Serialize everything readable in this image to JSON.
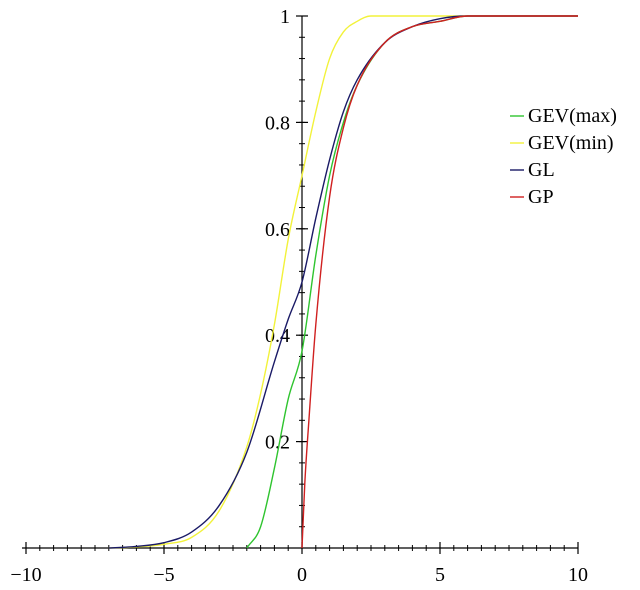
{
  "chart_data": {
    "type": "line",
    "title": "",
    "xlabel": "",
    "ylabel": "",
    "xlim": [
      -10,
      10
    ],
    "ylim": [
      0,
      1
    ],
    "grid": false,
    "legend_position": "right",
    "x_ticks": [
      -10,
      -5,
      0,
      5,
      10
    ],
    "x_tick_labels": [
      "−10",
      "−5",
      "0",
      "5",
      "10"
    ],
    "y_ticks": [
      0.2,
      0.4,
      0.6,
      0.8,
      1
    ],
    "y_tick_labels": [
      "0.2",
      "0.4",
      "0.6",
      "0.8",
      "1"
    ],
    "series": [
      {
        "name": "GEV(max)",
        "color": "#2fc42f",
        "x": [
          -2,
          -1.5,
          -1,
          -0.5,
          0,
          0.5,
          1,
          1.5,
          2,
          3,
          4,
          5,
          6,
          8,
          10
        ],
        "y": [
          0.0,
          0.04,
          0.15,
          0.28,
          0.37,
          0.55,
          0.7,
          0.8,
          0.87,
          0.95,
          0.98,
          0.99,
          1.0,
          1.0,
          1.0
        ]
      },
      {
        "name": "GEV(min)",
        "color": "#f2f23a",
        "x": [
          -7,
          -6,
          -5,
          -4,
          -3,
          -2,
          -1.5,
          -1,
          -0.5,
          0,
          0.5,
          1,
          1.5,
          2,
          2.5,
          3,
          5,
          10
        ],
        "y": [
          0.0,
          0.002,
          0.007,
          0.02,
          0.07,
          0.19,
          0.29,
          0.42,
          0.58,
          0.7,
          0.82,
          0.92,
          0.97,
          0.99,
          1.0,
          1.0,
          1.0,
          1.0
        ]
      },
      {
        "name": "GL",
        "color": "#1a1a66",
        "x": [
          -7,
          -6,
          -5,
          -4,
          -3,
          -2,
          -1,
          -0.5,
          0,
          0.5,
          1,
          1.5,
          2,
          3,
          4,
          5,
          6,
          8,
          10
        ],
        "y": [
          0.0,
          0.003,
          0.01,
          0.03,
          0.08,
          0.18,
          0.35,
          0.43,
          0.5,
          0.62,
          0.73,
          0.82,
          0.88,
          0.95,
          0.98,
          0.995,
          1.0,
          1.0,
          1.0
        ]
      },
      {
        "name": "GP",
        "color": "#d02020",
        "x": [
          0,
          0.1,
          0.25,
          0.5,
          1,
          1.5,
          2,
          3,
          4,
          5,
          6,
          8,
          10
        ],
        "y": [
          0.0,
          0.12,
          0.24,
          0.42,
          0.66,
          0.79,
          0.87,
          0.95,
          0.98,
          0.99,
          1.0,
          1.0,
          1.0
        ]
      }
    ]
  }
}
